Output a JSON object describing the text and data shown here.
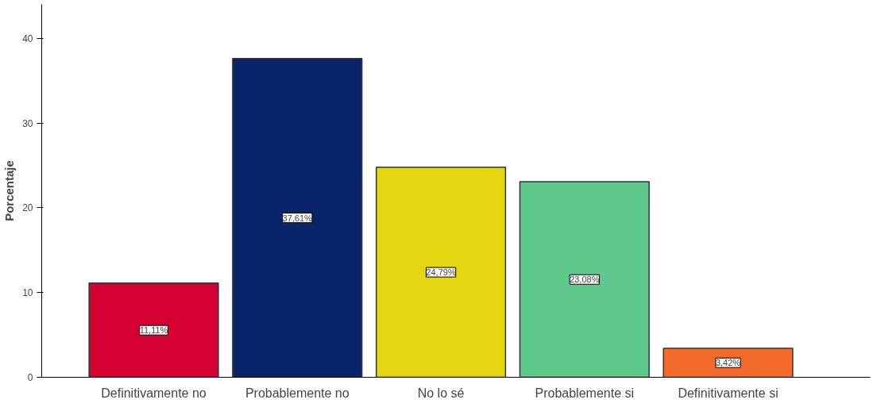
{
  "chart_data": {
    "type": "bar",
    "ylabel": "Porcentaje",
    "categories": [
      "Definitivamente no",
      "Probablemente no",
      "No lo sé",
      "Probablemente si",
      "Definitivamente si"
    ],
    "values": [
      11.11,
      37.61,
      24.79,
      23.08,
      3.42
    ],
    "colors": [
      "#d50032",
      "#0a246a",
      "#e3d611",
      "#5ec98a",
      "#f26b2b"
    ],
    "value_labels": [
      "11,11%",
      "37,61%",
      "24,79%",
      "23,08%",
      "3,42%"
    ],
    "ylim": [
      0,
      44
    ],
    "yticks": [
      0,
      10,
      20,
      30,
      40
    ],
    "grid": false
  }
}
